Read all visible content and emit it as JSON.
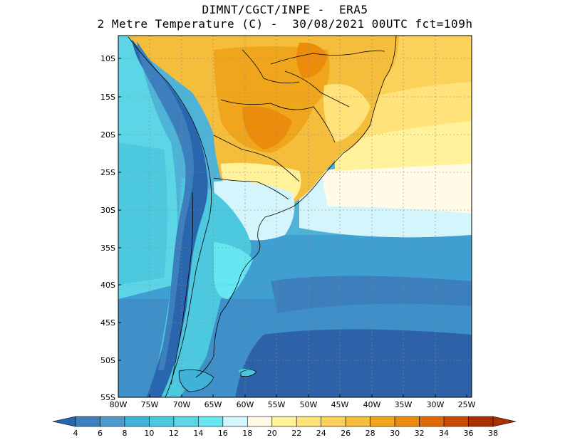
{
  "header": {
    "line1": "DIMNT/CGCT/INPE -  ERA5",
    "line2": "2 Metre Temperature (C) -  30/08/2021 00UTC fct=109h"
  },
  "map": {
    "lat_labels": [
      "10S",
      "15S",
      "20S",
      "25S",
      "30S",
      "35S",
      "40S",
      "45S",
      "50S",
      "55S"
    ],
    "lon_labels": [
      "80W",
      "75W",
      "70W",
      "65W",
      "60W",
      "55W",
      "50W",
      "45W",
      "40W",
      "35W",
      "30W",
      "25W"
    ]
  },
  "colorbar": {
    "labels": [
      "4",
      "6",
      "8",
      "10",
      "12",
      "14",
      "16",
      "18",
      "20",
      "22",
      "24",
      "26",
      "28",
      "30",
      "32",
      "34",
      "36",
      "38"
    ],
    "colors": [
      "#2a66ad",
      "#3d7fbd",
      "#4f99cc",
      "#3fb2d6",
      "#4cc8df",
      "#5cd6e6",
      "#66e6f0",
      "#d3f5fb",
      "#fffbe6",
      "#fff29b",
      "#ffe37a",
      "#fcd15a",
      "#f5bd3c",
      "#f0a61c",
      "#ec8c0c",
      "#df6a05",
      "#c94a02",
      "#a83000"
    ]
  },
  "colors": {
    "cold_ocean": "#2d62a8",
    "mid_ocean": "#3f8fc8",
    "warm_ocean": "#4fb3d8",
    "land_warm": "#f5bd3c",
    "land_hot": "#f0a61c",
    "andes": "#2a66ad"
  }
}
